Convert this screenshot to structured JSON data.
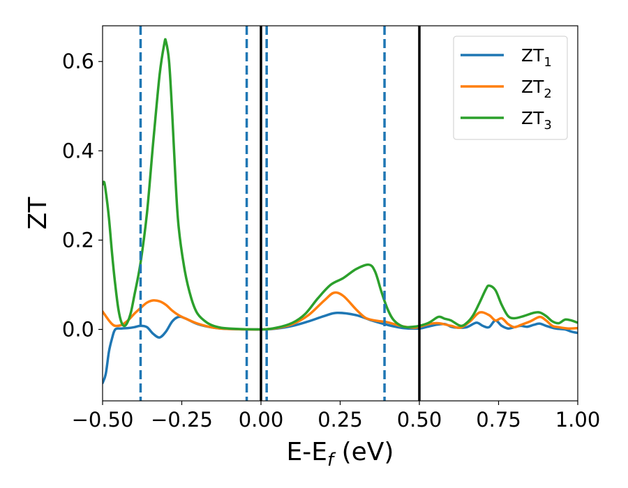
{
  "chart_data": {
    "type": "line",
    "xlabel": {
      "main": "E-E",
      "sub": "f",
      "suffix": " (eV)"
    },
    "ylabel": "ZT",
    "xlim": [
      -0.5,
      1.0
    ],
    "ylim": [
      -0.16,
      0.68
    ],
    "xticks": [
      -0.5,
      -0.25,
      0.0,
      0.25,
      0.5,
      0.75,
      1.0
    ],
    "xtick_labels": [
      "−0.50",
      "−0.25",
      "0.00",
      "0.25",
      "0.50",
      "0.75",
      "1.00"
    ],
    "yticks": [
      0.0,
      0.2,
      0.4,
      0.6
    ],
    "ytick_labels": [
      "0.0",
      "0.2",
      "0.4",
      "0.6"
    ],
    "grid": false,
    "legend_position": "top-right",
    "vlines_dashed": [
      -0.38,
      -0.045,
      0.018,
      0.39
    ],
    "vlines_solid": [
      0.0,
      0.5
    ],
    "vline_dashed_color": "#1f77b4",
    "vline_solid_color": "#000000",
    "series": [
      {
        "name": "ZT",
        "subscript": "1",
        "color": "#1f77b4",
        "points": [
          [
            -0.5,
            -0.12
          ],
          [
            -0.49,
            -0.1
          ],
          [
            -0.48,
            -0.05
          ],
          [
            -0.47,
            -0.02
          ],
          [
            -0.46,
            0.0
          ],
          [
            -0.44,
            0.002
          ],
          [
            -0.42,
            0.003
          ],
          [
            -0.4,
            0.005
          ],
          [
            -0.38,
            0.008
          ],
          [
            -0.36,
            0.005
          ],
          [
            -0.34,
            -0.01
          ],
          [
            -0.32,
            -0.018
          ],
          [
            -0.3,
            -0.005
          ],
          [
            -0.28,
            0.018
          ],
          [
            -0.26,
            0.028
          ],
          [
            -0.24,
            0.025
          ],
          [
            -0.2,
            0.012
          ],
          [
            -0.15,
            0.004
          ],
          [
            -0.1,
            0.001
          ],
          [
            0.0,
            0.0
          ],
          [
            0.05,
            0.002
          ],
          [
            0.1,
            0.008
          ],
          [
            0.15,
            0.018
          ],
          [
            0.2,
            0.03
          ],
          [
            0.24,
            0.037
          ],
          [
            0.3,
            0.032
          ],
          [
            0.35,
            0.02
          ],
          [
            0.4,
            0.01
          ],
          [
            0.45,
            0.003
          ],
          [
            0.5,
            0.002
          ],
          [
            0.52,
            0.005
          ],
          [
            0.55,
            0.01
          ],
          [
            0.58,
            0.012
          ],
          [
            0.6,
            0.006
          ],
          [
            0.62,
            0.004
          ],
          [
            0.65,
            0.005
          ],
          [
            0.68,
            0.015
          ],
          [
            0.7,
            0.008
          ],
          [
            0.72,
            0.005
          ],
          [
            0.74,
            0.02
          ],
          [
            0.76,
            0.008
          ],
          [
            0.78,
            0.002
          ],
          [
            0.8,
            0.005
          ],
          [
            0.82,
            0.008
          ],
          [
            0.84,
            0.006
          ],
          [
            0.86,
            0.01
          ],
          [
            0.88,
            0.013
          ],
          [
            0.9,
            0.008
          ],
          [
            0.93,
            0.002
          ],
          [
            0.96,
            0.0
          ],
          [
            0.98,
            -0.005
          ],
          [
            1.0,
            -0.008
          ]
        ]
      },
      {
        "name": "ZT",
        "subscript": "2",
        "color": "#ff7f0e",
        "points": [
          [
            -0.5,
            0.04
          ],
          [
            -0.49,
            0.03
          ],
          [
            -0.48,
            0.02
          ],
          [
            -0.47,
            0.012
          ],
          [
            -0.46,
            0.008
          ],
          [
            -0.44,
            0.01
          ],
          [
            -0.42,
            0.02
          ],
          [
            -0.4,
            0.035
          ],
          [
            -0.38,
            0.048
          ],
          [
            -0.36,
            0.06
          ],
          [
            -0.34,
            0.065
          ],
          [
            -0.32,
            0.063
          ],
          [
            -0.3,
            0.055
          ],
          [
            -0.28,
            0.042
          ],
          [
            -0.26,
            0.032
          ],
          [
            -0.24,
            0.025
          ],
          [
            -0.2,
            0.013
          ],
          [
            -0.15,
            0.004
          ],
          [
            -0.1,
            0.001
          ],
          [
            0.0,
            0.0
          ],
          [
            0.05,
            0.003
          ],
          [
            0.1,
            0.012
          ],
          [
            0.15,
            0.032
          ],
          [
            0.2,
            0.065
          ],
          [
            0.23,
            0.082
          ],
          [
            0.26,
            0.075
          ],
          [
            0.3,
            0.045
          ],
          [
            0.33,
            0.026
          ],
          [
            0.36,
            0.02
          ],
          [
            0.4,
            0.016
          ],
          [
            0.44,
            0.008
          ],
          [
            0.48,
            0.004
          ],
          [
            0.5,
            0.006
          ],
          [
            0.53,
            0.012
          ],
          [
            0.56,
            0.014
          ],
          [
            0.6,
            0.008
          ],
          [
            0.63,
            0.004
          ],
          [
            0.66,
            0.018
          ],
          [
            0.69,
            0.038
          ],
          [
            0.72,
            0.032
          ],
          [
            0.74,
            0.02
          ],
          [
            0.76,
            0.025
          ],
          [
            0.78,
            0.012
          ],
          [
            0.8,
            0.005
          ],
          [
            0.82,
            0.01
          ],
          [
            0.85,
            0.018
          ],
          [
            0.88,
            0.028
          ],
          [
            0.9,
            0.02
          ],
          [
            0.92,
            0.008
          ],
          [
            0.94,
            0.005
          ],
          [
            0.97,
            0.002
          ],
          [
            1.0,
            0.003
          ]
        ]
      },
      {
        "name": "ZT",
        "subscript": "3",
        "color": "#2ca02c",
        "points": [
          [
            -0.5,
            0.325
          ],
          [
            -0.495,
            0.33
          ],
          [
            -0.49,
            0.31
          ],
          [
            -0.48,
            0.25
          ],
          [
            -0.47,
            0.17
          ],
          [
            -0.46,
            0.1
          ],
          [
            -0.45,
            0.045
          ],
          [
            -0.44,
            0.015
          ],
          [
            -0.43,
            0.008
          ],
          [
            -0.42,
            0.018
          ],
          [
            -0.41,
            0.04
          ],
          [
            -0.4,
            0.075
          ],
          [
            -0.38,
            0.15
          ],
          [
            -0.36,
            0.26
          ],
          [
            -0.34,
            0.42
          ],
          [
            -0.32,
            0.57
          ],
          [
            -0.305,
            0.64
          ],
          [
            -0.3,
            0.645
          ],
          [
            -0.29,
            0.6
          ],
          [
            -0.28,
            0.48
          ],
          [
            -0.27,
            0.34
          ],
          [
            -0.26,
            0.23
          ],
          [
            -0.24,
            0.13
          ],
          [
            -0.22,
            0.07
          ],
          [
            -0.2,
            0.035
          ],
          [
            -0.17,
            0.015
          ],
          [
            -0.14,
            0.006
          ],
          [
            -0.1,
            0.002
          ],
          [
            0.0,
            0.0
          ],
          [
            0.05,
            0.004
          ],
          [
            0.1,
            0.015
          ],
          [
            0.14,
            0.035
          ],
          [
            0.18,
            0.07
          ],
          [
            0.22,
            0.1
          ],
          [
            0.26,
            0.115
          ],
          [
            0.3,
            0.135
          ],
          [
            0.34,
            0.145
          ],
          [
            0.36,
            0.13
          ],
          [
            0.38,
            0.085
          ],
          [
            0.4,
            0.045
          ],
          [
            0.42,
            0.02
          ],
          [
            0.45,
            0.006
          ],
          [
            0.48,
            0.006
          ],
          [
            0.5,
            0.008
          ],
          [
            0.53,
            0.015
          ],
          [
            0.56,
            0.028
          ],
          [
            0.58,
            0.024
          ],
          [
            0.6,
            0.02
          ],
          [
            0.63,
            0.008
          ],
          [
            0.65,
            0.015
          ],
          [
            0.67,
            0.032
          ],
          [
            0.69,
            0.06
          ],
          [
            0.71,
            0.09
          ],
          [
            0.72,
            0.098
          ],
          [
            0.74,
            0.088
          ],
          [
            0.76,
            0.055
          ],
          [
            0.78,
            0.03
          ],
          [
            0.8,
            0.025
          ],
          [
            0.83,
            0.03
          ],
          [
            0.86,
            0.037
          ],
          [
            0.88,
            0.038
          ],
          [
            0.9,
            0.03
          ],
          [
            0.92,
            0.018
          ],
          [
            0.94,
            0.014
          ],
          [
            0.96,
            0.022
          ],
          [
            0.98,
            0.02
          ],
          [
            1.0,
            0.015
          ]
        ]
      }
    ]
  }
}
